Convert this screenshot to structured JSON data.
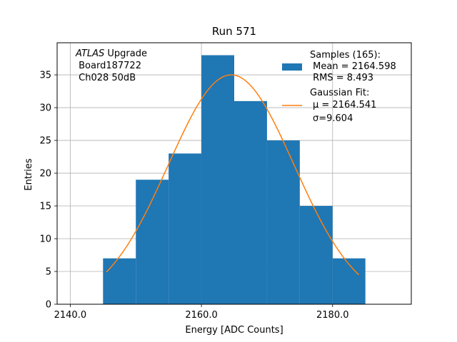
{
  "chart_data": {
    "type": "bar",
    "title": "Run 571",
    "xlabel": "Energy [ADC Counts]",
    "ylabel": "Entries",
    "xlim": [
      2138,
      2192
    ],
    "ylim": [
      0,
      39.9
    ],
    "grid": true,
    "x_ticks": [
      2140.0,
      2160.0,
      2180.0
    ],
    "x_tick_labels": [
      "2140.0",
      "2160.0",
      "2180.0"
    ],
    "y_ticks": [
      0,
      5,
      10,
      15,
      20,
      25,
      30,
      35
    ],
    "y_tick_labels": [
      "0",
      "5",
      "10",
      "15",
      "20",
      "25",
      "30",
      "35"
    ],
    "bins": [
      {
        "x0": 2145,
        "x1": 2150,
        "count": 7
      },
      {
        "x0": 2150,
        "x1": 2155,
        "count": 19
      },
      {
        "x0": 2155,
        "x1": 2160,
        "count": 23
      },
      {
        "x0": 2160,
        "x1": 2165,
        "count": 38
      },
      {
        "x0": 2165,
        "x1": 2170,
        "count": 31
      },
      {
        "x0": 2170,
        "x1": 2175,
        "count": 25
      },
      {
        "x0": 2175,
        "x1": 2180,
        "count": 15
      },
      {
        "x0": 2180,
        "x1": 2185,
        "count": 7
      }
    ],
    "fit": {
      "type": "gaussian",
      "amplitude": 35.0,
      "mu": 2164.541,
      "sigma": 9.604,
      "x_range": [
        2145.5,
        2184.0
      ]
    },
    "colors": {
      "hist": "#1f77b4",
      "fit": "#ff7f0e",
      "grid": "#b0b0b0"
    },
    "annotation": {
      "line1_italic": "ATLAS",
      "line1_rest": " Upgrade",
      "line2": " Board187722",
      "line3": " Ch028 50dB"
    },
    "legend": {
      "placement": "upper-right",
      "entries": [
        {
          "lines": [
            "Samples (165):",
            " Mean = 2164.598",
            " RMS = 8.493"
          ]
        },
        {
          "lines": [
            "Gaussian Fit:",
            "μ = 2164.541",
            "σ=9.604"
          ]
        }
      ]
    }
  }
}
